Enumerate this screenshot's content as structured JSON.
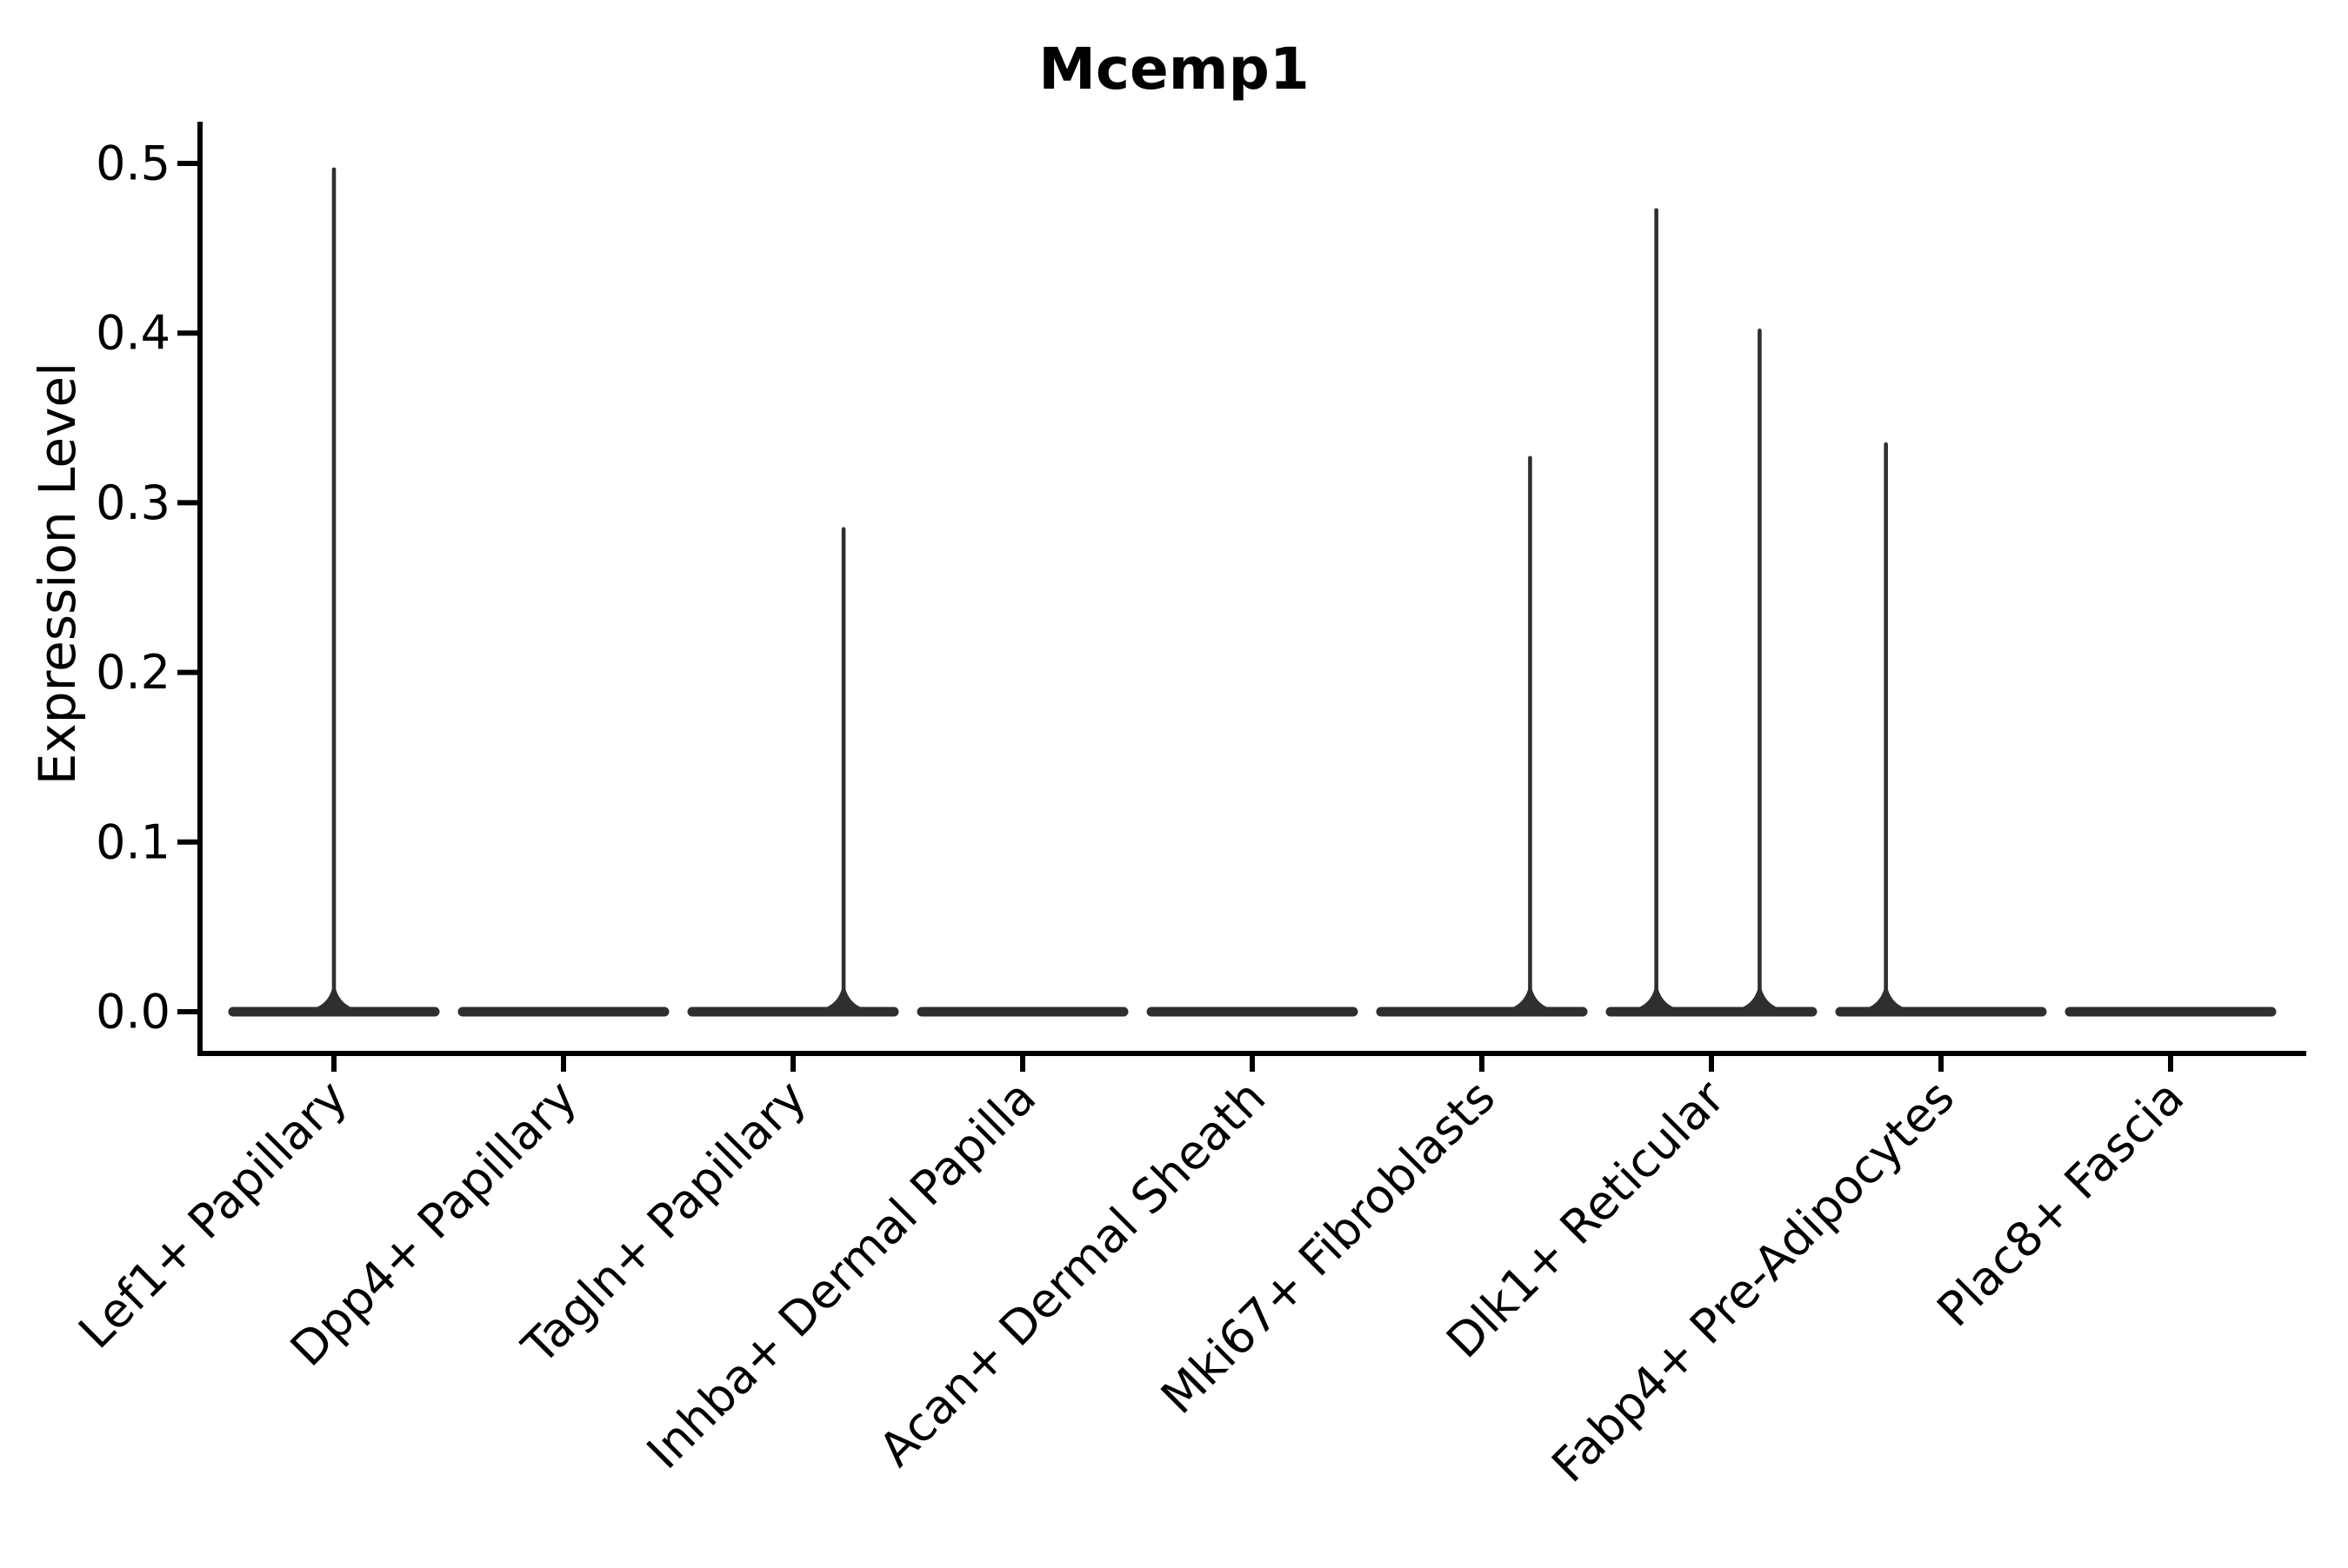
{
  "chart_data": {
    "type": "violin",
    "title": "Mcemp1",
    "xlabel": "",
    "ylabel": "Expression Level",
    "ylim": [
      0,
      0.5
    ],
    "yticks": [
      "0.0",
      "0.1",
      "0.2",
      "0.3",
      "0.4",
      "0.5"
    ],
    "grid": false,
    "legend": null,
    "categories": [
      "Lef1+ Papillary",
      "Dpp4+ Papillary",
      "Tagln+ Papillary",
      "Inhba+ Dermal Papilla",
      "Acan+ Dermal Sheath",
      "Mki67+ Fibroblasts",
      "Dlk1+ Reticular",
      "Fabp4+ Pre-Adipocytes",
      "Plac8+ Fascia"
    ],
    "violins": [
      {
        "category": "Lef1+ Papillary",
        "body_value": 0,
        "spikes": [
          {
            "x_offset": 0.0,
            "max": 0.498
          }
        ]
      },
      {
        "category": "Dpp4+ Papillary",
        "body_value": 0,
        "spikes": []
      },
      {
        "category": "Tagln+ Papillary",
        "body_value": 0,
        "spikes": [
          {
            "x_offset": 0.22,
            "max": 0.286
          }
        ]
      },
      {
        "category": "Inhba+ Dermal Papilla",
        "body_value": 0,
        "spikes": []
      },
      {
        "category": "Acan+ Dermal Sheath",
        "body_value": 0,
        "spikes": []
      },
      {
        "category": "Mki67+ Fibroblasts",
        "body_value": 0,
        "spikes": [
          {
            "x_offset": 0.21,
            "max": 0.328
          }
        ]
      },
      {
        "category": "Dlk1+ Reticular",
        "body_value": 0,
        "spikes": [
          {
            "x_offset": -0.24,
            "max": 0.474
          },
          {
            "x_offset": 0.21,
            "max": 0.403
          }
        ]
      },
      {
        "category": "Fabp4+ Pre-Adipocytes",
        "body_value": 0,
        "spikes": [
          {
            "x_offset": -0.24,
            "max": 0.336
          }
        ]
      },
      {
        "category": "Plac8+ Fascia",
        "body_value": 0,
        "spikes": []
      }
    ],
    "colors": {
      "violin": "#2f2f2f",
      "axis": "#000000",
      "text": "#000000",
      "background": "#ffffff"
    }
  }
}
